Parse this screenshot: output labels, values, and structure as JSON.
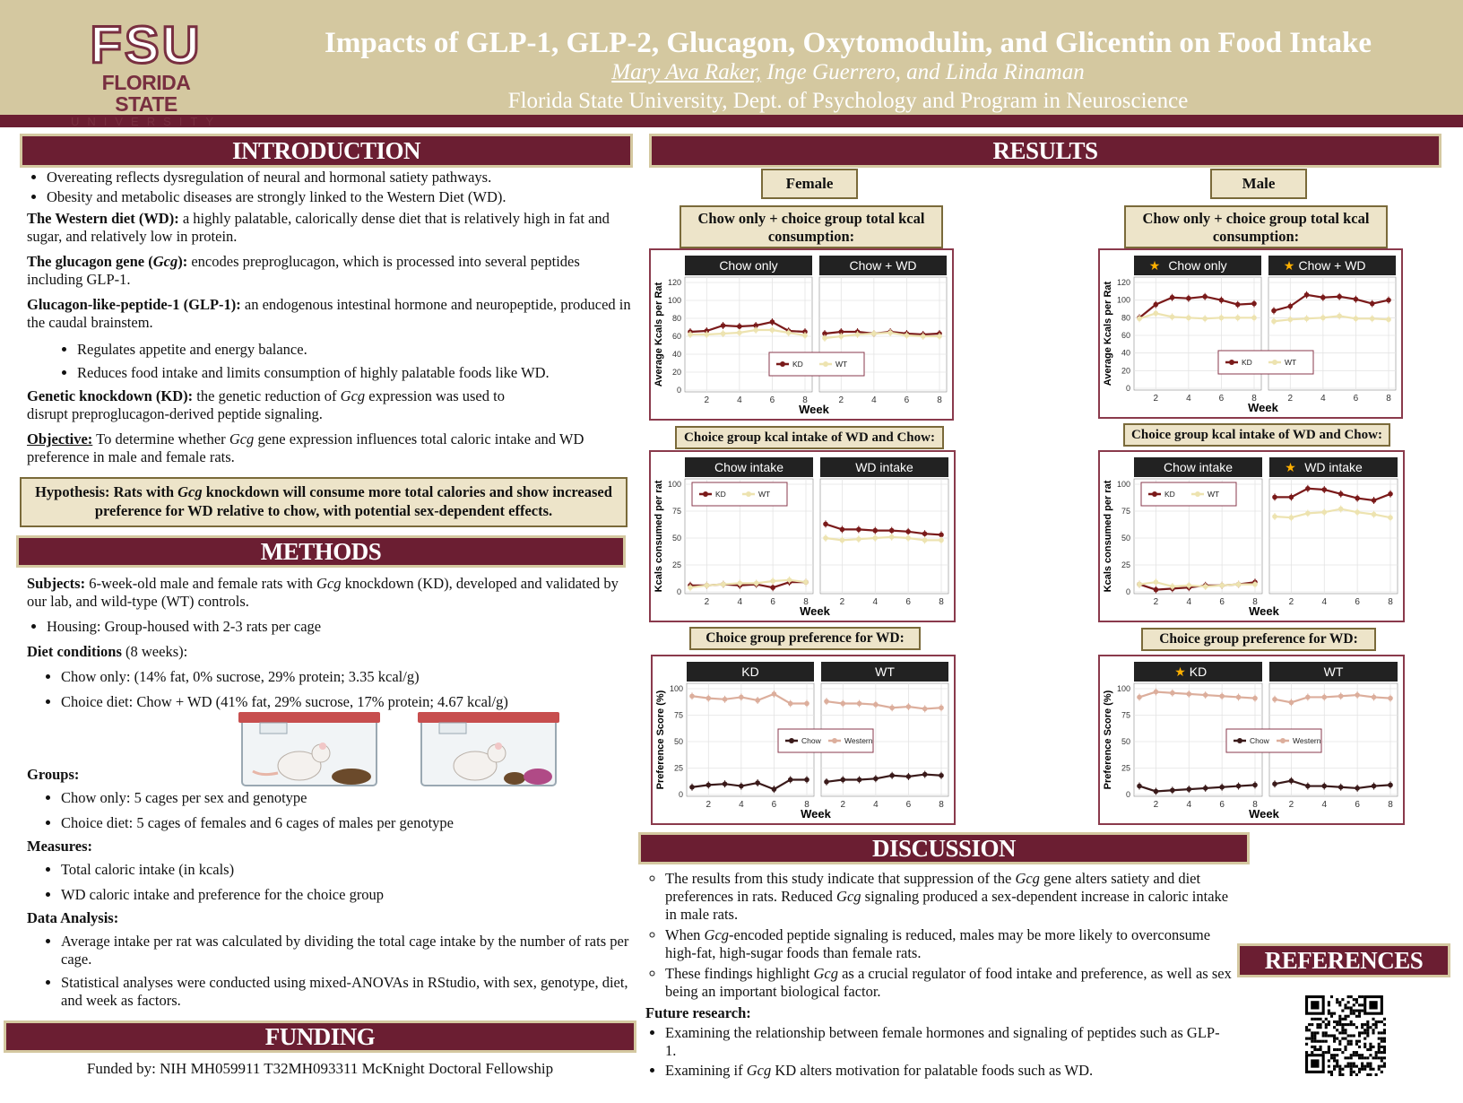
{
  "header": {
    "logo_fsu": "FSU",
    "logo_line1": "FLORIDA STATE",
    "logo_line2": "UNIVERSITY",
    "title": "Impacts of GLP-1, GLP-2, Glucagon, Oxytomodulin, and Glicentin on Food Intake",
    "author_first": "Mary Ava Raker,",
    "author_rest": " Inge Guerrero, and Linda Rinaman",
    "affiliation": "Florida State University, Dept. of Psychology and Program in Neuroscience"
  },
  "intro": {
    "heading": "INTRODUCTION",
    "bullets": [
      "Overeating reflects dysregulation of neural and hormonal satiety pathways.",
      "Obesity and metabolic diseases are strongly linked to the Western Diet (WD)."
    ],
    "wd_term": "The Western diet (WD):",
    "wd_text": " a highly palatable, calorically dense diet that is relatively high in fat and sugar, and relatively low in protein.",
    "gcg_term_a": "The glucagon gene (",
    "gcg_term_b": "Gcg",
    "gcg_term_c": "):",
    "gcg_text": " encodes preproglucagon, which is processed into several peptides including GLP-1.",
    "glp_term": "Glucagon-like-peptide-1 (GLP-1):",
    "glp_text": " an endogenous intestinal hormone and neuropeptide, produced in the caudal brainstem.",
    "glp_bullets": [
      "Regulates appetite and energy balance.",
      "Reduces food intake and limits consumption of highly palatable foods like WD."
    ],
    "kd_term": "Genetic knockdown (KD):",
    "kd_text_a": " the genetic reduction of ",
    "kd_text_b": "Gcg",
    "kd_text_c": " expression was used to disrupt preproglucagon-derived peptide signaling.",
    "obj_term": "Objective:",
    "obj_text_a": " To determine whether ",
    "obj_text_b": "Gcg",
    "obj_text_c": " gene expression influences total caloric intake and WD preference in male and female rats.",
    "hyp_a": "Hypothesis: Rats with ",
    "hyp_b": "Gcg",
    "hyp_c": " knockdown will consume more total calories and show increased preference for WD relative to chow, with potential sex-dependent effects."
  },
  "methods": {
    "heading": "METHODS",
    "subj_term": "Subjects:",
    "subj_a": " 6-week-old male and female rats with ",
    "subj_b": "Gcg",
    "subj_c": " knockdown (KD), developed and validated by our lab, and wild-type (WT) controls.",
    "housing": "Housing: Group-housed with 2-3 rats per cage",
    "diet_term": "Diet conditions",
    "diet_term_suffix": " (8 weeks):",
    "diet_bullets": [
      "Chow only: (14% fat, 0% sucrose, 29% protein; 3.35 kcal/g)",
      "Choice diet: Chow + WD (41% fat, 29% sucrose, 17% protein; 4.67 kcal/g)"
    ],
    "groups_term": "Groups:",
    "groups_bullets": [
      "Chow only: 5 cages per sex and genotype",
      "Choice diet: 5 cages of females and 6 cages of males per genotype"
    ],
    "measures_term": "Measures:",
    "measures_bullets": [
      "Total caloric intake (in kcals)",
      "WD caloric intake and preference for the choice group"
    ],
    "analysis_term": "Data Analysis:",
    "analysis_bullets": [
      "Average intake per rat was calculated by dividing the total cage intake by the number of rats per cage.",
      "Statistical analyses were conducted using mixed-ANOVAs in RStudio, with sex, genotype, diet, and week as factors."
    ]
  },
  "funding": {
    "heading": "FUNDING",
    "text": "Funded by: NIH MH059911 T32MH093311 McKnight Doctoral Fellowship"
  },
  "results": {
    "heading": "RESULTS",
    "female_label": "Female",
    "male_label": "Male",
    "total_label": "Chow only + choice group total kcal consumption:",
    "intake_label": "Choice group kcal intake of WD and Chow:",
    "pref_label": "Choice group preference for WD:"
  },
  "chart_data": [
    {
      "id": "f-total",
      "type": "line",
      "ylabel": "Average Kcals per Rat",
      "xlabel": "Week",
      "ylim": [
        0,
        120
      ],
      "yticks": [
        0,
        20,
        40,
        60,
        80,
        100,
        120
      ],
      "xticks": [
        2,
        4,
        6,
        8
      ],
      "facets": [
        "Chow only",
        "Chow + WD"
      ],
      "star": [
        false,
        false
      ],
      "legend": "bottom-center",
      "series": [
        {
          "name": "KD",
          "color": "#7a1a1a",
          "facet_values": [
            [
              65,
              66,
              72,
              71,
              72,
              76,
              66,
              65
            ],
            [
              63,
              65,
              65,
              63,
              65,
              63,
              62,
              63
            ]
          ]
        },
        {
          "name": "WT",
          "color": "#ede3b0",
          "facet_values": [
            [
              62,
              62,
              63,
              64,
              67,
              67,
              64,
              61
            ],
            [
              58,
              60,
              62,
              63,
              64,
              61,
              60,
              60
            ]
          ]
        }
      ]
    },
    {
      "id": "m-total",
      "type": "line",
      "ylabel": "Average Kcals per Rat",
      "xlabel": "Week",
      "ylim": [
        0,
        120
      ],
      "yticks": [
        0,
        20,
        40,
        60,
        80,
        100,
        120
      ],
      "xticks": [
        2,
        4,
        6,
        8
      ],
      "facets": [
        "Chow only",
        "Chow + WD"
      ],
      "star": [
        true,
        true
      ],
      "legend": "bottom-center",
      "series": [
        {
          "name": "KD",
          "color": "#7a1a1a",
          "facet_values": [
            [
              80,
              95,
              103,
              102,
              104,
              100,
              95,
              96
            ],
            [
              88,
              93,
              106,
              103,
              104,
              101,
              96,
              100
            ]
          ]
        },
        {
          "name": "WT",
          "color": "#ede3b0",
          "facet_values": [
            [
              79,
              85,
              81,
              80,
              79,
              80,
              80,
              80
            ],
            [
              76,
              78,
              79,
              80,
              82,
              79,
              79,
              78
            ]
          ]
        }
      ]
    },
    {
      "id": "f-intake",
      "type": "line",
      "ylabel": "Kcals consumed per rat",
      "xlabel": "Week",
      "ylim": [
        0,
        100
      ],
      "yticks": [
        0,
        25,
        50,
        75,
        100
      ],
      "xticks": [
        2,
        4,
        6,
        8
      ],
      "facets": [
        "Chow intake",
        "WD intake"
      ],
      "star": [
        false,
        false
      ],
      "legend": "top-left",
      "series": [
        {
          "name": "KD",
          "color": "#7a1a1a",
          "facet_values": [
            [
              6,
              6,
              7,
              6,
              7,
              4,
              9,
              9
            ],
            [
              63,
              58,
              58,
              57,
              57,
              56,
              54,
              53
            ]
          ]
        },
        {
          "name": "WT",
          "color": "#ede3b0",
          "facet_values": [
            [
              4,
              6,
              7,
              8,
              8,
              10,
              11,
              9
            ],
            [
              50,
              48,
              49,
              50,
              51,
              50,
              48,
              48
            ]
          ]
        }
      ]
    },
    {
      "id": "m-intake",
      "type": "line",
      "ylabel": "Kcals consumed per rat",
      "xlabel": "Week",
      "ylim": [
        0,
        100
      ],
      "yticks": [
        0,
        25,
        50,
        75,
        100
      ],
      "xticks": [
        2,
        4,
        6,
        8
      ],
      "facets": [
        "Chow intake",
        "WD intake"
      ],
      "star": [
        false,
        true
      ],
      "legend": "top-left",
      "series": [
        {
          "name": "KD",
          "color": "#7a1a1a",
          "facet_values": [
            [
              7,
              2,
              3,
              4,
              6,
              6,
              7,
              9
            ],
            [
              88,
              88,
              96,
              95,
              91,
              87,
              85,
              91
            ]
          ]
        },
        {
          "name": "WT",
          "color": "#ede3b0",
          "facet_values": [
            [
              7,
              9,
              5,
              6,
              5,
              6,
              7,
              7
            ],
            [
              70,
              69,
              73,
              74,
              77,
              74,
              72,
              69
            ]
          ]
        }
      ]
    },
    {
      "id": "f-pref",
      "type": "line",
      "ylabel": "Preference Score (%)",
      "xlabel": "Week",
      "ylim": [
        0,
        100
      ],
      "yticks": [
        0,
        25,
        50,
        75,
        100
      ],
      "xticks": [
        2,
        4,
        6,
        8
      ],
      "facets": [
        "KD",
        "WT"
      ],
      "star": [
        false,
        false
      ],
      "legend": "center",
      "series": [
        {
          "name": "Chow",
          "color": "#3a1a1a",
          "facet_values": [
            [
              7,
              9,
              10,
              8,
              11,
              5,
              14,
              14
            ],
            [
              12,
              14,
              14,
              15,
              18,
              17,
              19,
              18
            ]
          ]
        },
        {
          "name": "Western",
          "color": "#dcae9c",
          "facet_values": [
            [
              93,
              91,
              90,
              92,
              89,
              95,
              86,
              86
            ],
            [
              88,
              86,
              86,
              85,
              82,
              83,
              81,
              82
            ]
          ]
        }
      ]
    },
    {
      "id": "m-pref",
      "type": "line",
      "ylabel": "Preference Score (%)",
      "xlabel": "Week",
      "ylim": [
        0,
        100
      ],
      "yticks": [
        0,
        25,
        50,
        75,
        100
      ],
      "xticks": [
        2,
        4,
        6,
        8
      ],
      "facets": [
        "KD",
        "WT"
      ],
      "star": [
        true,
        false
      ],
      "legend": "center",
      "series": [
        {
          "name": "Chow",
          "color": "#3a1a1a",
          "facet_values": [
            [
              8,
              3,
              4,
              5,
              6,
              7,
              8,
              9
            ],
            [
              10,
              13,
              8,
              8,
              7,
              6,
              8,
              9
            ]
          ]
        },
        {
          "name": "Western",
          "color": "#dcae9c",
          "facet_values": [
            [
              92,
              97,
              96,
              95,
              94,
              93,
              92,
              91
            ],
            [
              90,
              87,
              92,
              92,
              93,
              94,
              92,
              91
            ]
          ]
        }
      ]
    }
  ],
  "discussion": {
    "heading": "DISCUSSION",
    "b1_a": "The results from this study indicate that suppression of the ",
    "b1_b": "Gcg",
    "b1_c": " gene alters satiety and diet preferences in rats. Reduced ",
    "b1_d": "Gcg",
    "b1_e": " signaling produced a sex-dependent increase in caloric intake in male rats.",
    "b2_a": "When ",
    "b2_b": "Gcg",
    "b2_c": "-encoded peptide signaling is reduced, males may be more likely to overconsume high-fat, high-sugar foods than female rats.",
    "b3_a": "These findings highlight ",
    "b3_b": "Gcg",
    "b3_c": " as a crucial regulator of food intake and preference, as well as sex being an important biological factor.",
    "future_term": "Future research:",
    "f1": "Examining the relationship between female hormones and signaling of peptides such as GLP-1.",
    "f2_a": "Examining if ",
    "f2_b": "Gcg",
    "f2_c": " KD alters motivation for palatable foods such as WD."
  },
  "references": {
    "heading": "REFERENCES"
  },
  "colors": {
    "maroon": "#6b1e32",
    "gold": "#d4c8a0",
    "kd": "#7a1a1a",
    "wt": "#ede3b0"
  }
}
